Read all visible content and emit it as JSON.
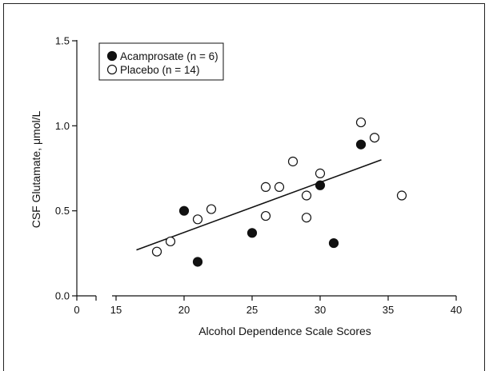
{
  "chart_data": {
    "type": "scatter",
    "xlabel": "Alcohol Dependence Scale Scores",
    "ylabel": "CSF Glutamate, μmol/L",
    "x_ticks": [
      0,
      15,
      20,
      25,
      30,
      35,
      40
    ],
    "x_tick_labels": [
      "0",
      "15",
      "20",
      "25",
      "30",
      "35",
      "40"
    ],
    "x_axis_break": [
      0,
      15
    ],
    "y_ticks": [
      0.0,
      0.5,
      1.0,
      1.5
    ],
    "y_tick_labels": [
      "0.0",
      "0.5",
      "1.0",
      "1.5"
    ],
    "xlim": [
      0,
      40
    ],
    "ylim": [
      0,
      1.5
    ],
    "grid": false,
    "legend_position": "top-left",
    "series": [
      {
        "name": "Acamprosate (n = 6)",
        "marker": "filled-circle",
        "color": "#111111",
        "points": [
          [
            20,
            0.5
          ],
          [
            21,
            0.2
          ],
          [
            25,
            0.37
          ],
          [
            30,
            0.65
          ],
          [
            31,
            0.31
          ],
          [
            33,
            0.89
          ]
        ]
      },
      {
        "name": "Placebo (n = 14)",
        "marker": "open-circle",
        "color": "#111111",
        "points": [
          [
            18,
            0.26
          ],
          [
            19,
            0.32
          ],
          [
            21,
            0.45
          ],
          [
            22,
            0.51
          ],
          [
            26,
            0.47
          ],
          [
            26,
            0.64
          ],
          [
            27,
            0.64
          ],
          [
            28,
            0.79
          ],
          [
            29,
            0.59
          ],
          [
            29,
            0.46
          ],
          [
            30,
            0.72
          ],
          [
            33,
            1.02
          ],
          [
            34,
            0.93
          ],
          [
            36,
            0.59
          ]
        ]
      }
    ],
    "trend_line": {
      "x": [
        16.5,
        34.5
      ],
      "y": [
        0.27,
        0.8
      ]
    }
  }
}
